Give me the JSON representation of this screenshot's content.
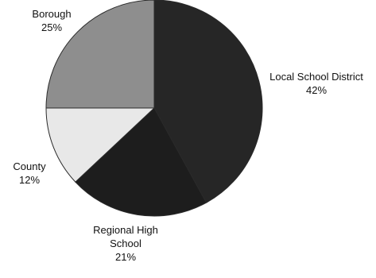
{
  "chart_data": {
    "type": "pie",
    "categories": [
      "Local School District",
      "Regional High School",
      "County",
      "Borough"
    ],
    "values": [
      42,
      21,
      12,
      25
    ],
    "percent_labels": [
      "42%",
      "21%",
      "12%",
      "25%"
    ],
    "colors": [
      "#262626",
      "#1d1d1d",
      "#e8e8e8",
      "#8e8e8e"
    ],
    "start": "top, clockwise",
    "legend": "none (labels beside slices)"
  },
  "labels": {
    "local_school_district": {
      "name": "Local School District",
      "pct": "42%"
    },
    "regional_high_school": {
      "name_line1": "Regional High",
      "name_line2": "School",
      "pct": "21%"
    },
    "county": {
      "name": "County",
      "pct": "12%"
    },
    "borough": {
      "name": "Borough",
      "pct": "25%"
    }
  }
}
